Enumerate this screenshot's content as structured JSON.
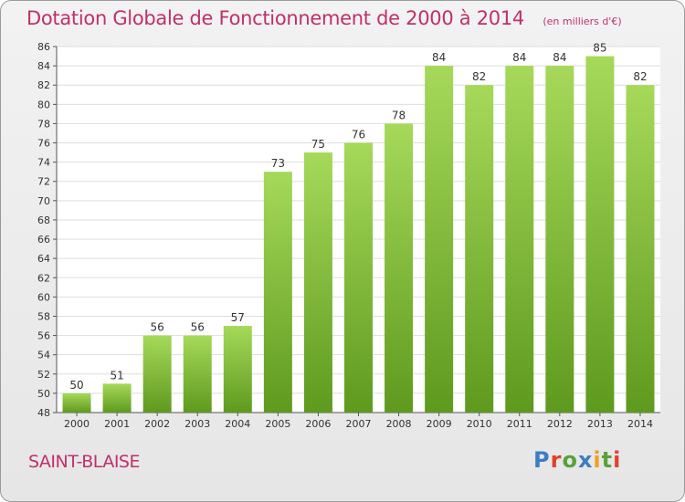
{
  "header": {
    "title": "Dotation Globale de Fonctionnement de 2000 à 2014",
    "unit": "(en milliers d'€)"
  },
  "footer": {
    "commune": "SAINT-BLAISE",
    "brand": "Proxiti",
    "brand_colors": [
      "#3b7dc4",
      "#e2402e",
      "#58a23c",
      "#3b7dc4",
      "#f0a020",
      "#58a23c",
      "#e2402e"
    ]
  },
  "colors": {
    "bar_light": "#a6d95a",
    "bar_dark": "#5e9a1e",
    "title": "#c0306a",
    "grid": "#dedede",
    "axis": "#555555"
  },
  "chart_data": {
    "type": "bar",
    "title": "Dotation Globale de Fonctionnement de 2000 à 2014",
    "subtitle": "(en milliers d'€)",
    "xlabel": "",
    "ylabel": "",
    "categories": [
      "2000",
      "2001",
      "2002",
      "2003",
      "2004",
      "2005",
      "2006",
      "2007",
      "2008",
      "2009",
      "2010",
      "2011",
      "2012",
      "2013",
      "2014"
    ],
    "values": [
      50,
      51,
      56,
      56,
      57,
      73,
      75,
      76,
      78,
      84,
      82,
      84,
      84,
      85,
      82
    ],
    "ylim": [
      48,
      86
    ],
    "yticks": [
      48,
      50,
      52,
      54,
      56,
      58,
      60,
      62,
      64,
      66,
      68,
      70,
      72,
      74,
      76,
      78,
      80,
      82,
      84,
      86
    ],
    "grid": true,
    "data_labels": true
  }
}
